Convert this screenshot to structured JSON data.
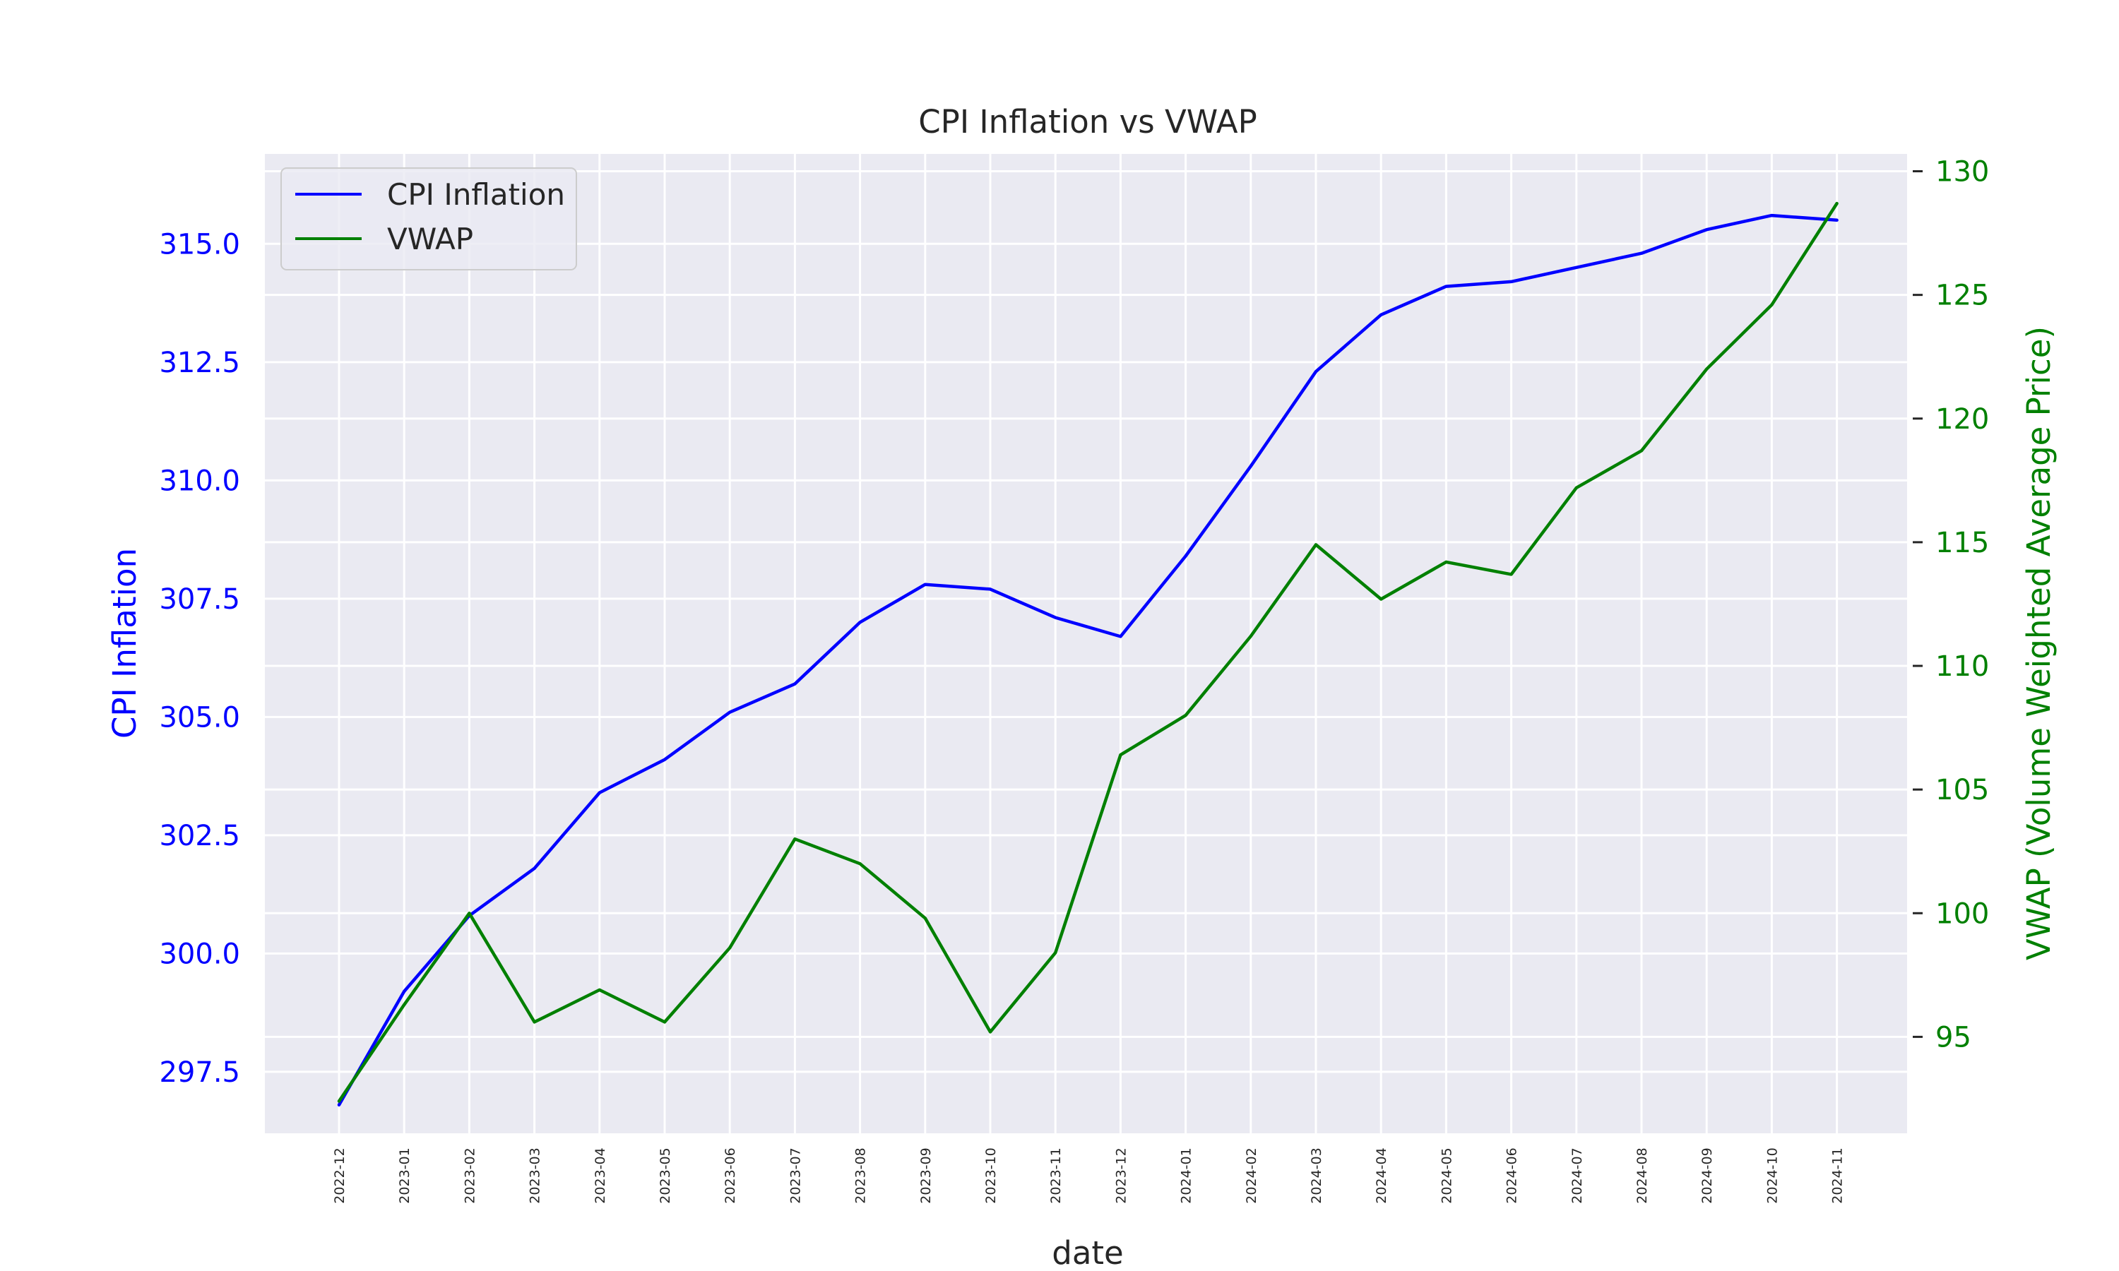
{
  "chart_data": {
    "type": "line",
    "title": "CPI Inflation vs VWAP",
    "xlabel": "date",
    "ylabel_left": "CPI Inflation",
    "ylabel_right": "VWAP (Volume Weighted Average Price)",
    "categories": [
      "2022-12",
      "2023-01",
      "2023-02",
      "2023-03",
      "2023-04",
      "2023-05",
      "2023-06",
      "2023-07",
      "2023-08",
      "2023-09",
      "2023-10",
      "2023-11",
      "2023-12",
      "2024-01",
      "2024-02",
      "2024-03",
      "2024-04",
      "2024-05",
      "2024-06",
      "2024-07",
      "2024-08",
      "2024-09",
      "2024-10",
      "2024-11"
    ],
    "left_axis": {
      "ylim": [
        296.2,
        316.9
      ],
      "ticks": [
        "297.5",
        "300.0",
        "302.5",
        "305.0",
        "307.5",
        "310.0",
        "312.5",
        "315.0"
      ],
      "color": "#0000ff"
    },
    "right_axis": {
      "ylim": [
        91.1,
        130.7
      ],
      "ticks": [
        "95",
        "100",
        "105",
        "110",
        "115",
        "120",
        "125",
        "130"
      ],
      "color": "#008000"
    },
    "series": [
      {
        "name": "CPI Inflation",
        "axis": "left",
        "color": "#0000ff",
        "values": [
          296.8,
          299.2,
          300.8,
          301.8,
          303.4,
          304.1,
          305.1,
          305.7,
          307.0,
          307.8,
          307.7,
          307.1,
          306.7,
          308.4,
          310.3,
          312.3,
          313.5,
          314.1,
          314.2,
          314.5,
          314.8,
          315.3,
          315.6,
          315.5
        ]
      },
      {
        "name": "VWAP",
        "axis": "right",
        "color": "#008000",
        "values": [
          92.4,
          96.3,
          100.0,
          95.6,
          96.9,
          95.6,
          98.6,
          103.0,
          102.0,
          99.8,
          95.2,
          98.4,
          106.4,
          108.0,
          111.2,
          114.9,
          112.7,
          114.2,
          113.7,
          117.2,
          118.7,
          122.0,
          124.6,
          128.7
        ]
      }
    ],
    "legend": {
      "placement": "top-left",
      "items": [
        "CPI Inflation",
        "VWAP"
      ]
    },
    "grid": true,
    "plot_background": "#eaeaf2"
  }
}
